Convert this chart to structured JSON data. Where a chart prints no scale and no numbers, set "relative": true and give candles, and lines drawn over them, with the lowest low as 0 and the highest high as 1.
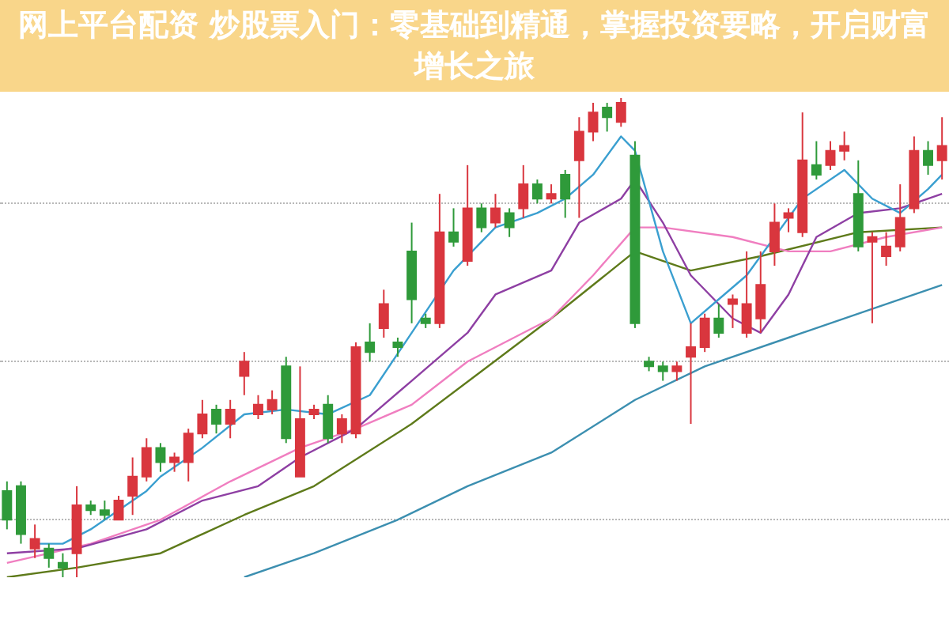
{
  "chart_data": {
    "type": "candlestick",
    "title": "网上平台配资 炒股票入门：零基础到精通，掌握投资要略，开启财富增长之旅",
    "relative": true,
    "tick_labels": false,
    "categories": [
      null,
      null,
      null,
      null,
      null,
      null,
      null,
      null,
      null,
      null,
      null,
      null,
      null,
      null,
      null,
      null,
      null,
      null,
      null,
      null,
      null,
      null,
      null,
      null,
      null,
      null,
      null,
      null,
      null,
      null,
      null,
      null,
      null,
      null,
      null,
      null,
      null,
      null,
      null,
      null,
      null,
      null,
      null,
      null,
      null,
      null,
      null,
      null,
      null,
      null,
      null,
      null,
      null,
      null,
      null,
      null,
      null,
      null,
      null,
      null,
      null,
      null,
      null,
      null,
      null,
      null,
      null,
      null
    ],
    "ohlc": [
      [
        0.18,
        0.2,
        0.1,
        0.12
      ],
      [
        0.19,
        0.2,
        0.07,
        0.09
      ],
      [
        0.06,
        0.11,
        0.04,
        0.08
      ],
      [
        0.06,
        0.07,
        0.02,
        0.04
      ],
      [
        0.03,
        0.05,
        0,
        0.02
      ],
      [
        0.05,
        0.19,
        0,
        0.15
      ],
      [
        0.15,
        0.16,
        0.13,
        0.14
      ],
      [
        0.14,
        0.16,
        0.12,
        0.13
      ],
      [
        0.12,
        0.17,
        0.12,
        0.16
      ],
      [
        0.17,
        0.25,
        0.13,
        0.21
      ],
      [
        0.21,
        0.29,
        0.2,
        0.27
      ],
      [
        0.27,
        0.28,
        0.22,
        0.24
      ],
      [
        0.24,
        0.26,
        0.22,
        0.25
      ],
      [
        0.24,
        0.31,
        0.2,
        0.3
      ],
      [
        0.3,
        0.37,
        0.29,
        0.34
      ],
      [
        0.35,
        0.36,
        0.3,
        0.32
      ],
      [
        0.32,
        0.37,
        0.29,
        0.35
      ],
      [
        0.42,
        0.47,
        0.38,
        0.45
      ],
      [
        0.34,
        0.38,
        0.33,
        0.36
      ],
      [
        0.35,
        0.39,
        0.34,
        0.37
      ],
      [
        0.44,
        0.46,
        0.28,
        0.29
      ],
      [
        0.21,
        0.44,
        0.21,
        0.33
      ],
      [
        0.34,
        0.36,
        0.33,
        0.35
      ],
      [
        0.36,
        0.38,
        0.28,
        0.29
      ],
      [
        0.3,
        0.34,
        0.28,
        0.33
      ],
      [
        0.3,
        0.49,
        0.29,
        0.48
      ],
      [
        0.49,
        0.53,
        0.45,
        0.47
      ],
      [
        0.52,
        0.6,
        0.5,
        0.57
      ],
      [
        0.49,
        0.5,
        0.46,
        0.48
      ],
      [
        0.68,
        0.74,
        0.53,
        0.58
      ],
      [
        0.54,
        0.55,
        0.52,
        0.53
      ],
      [
        0.53,
        0.8,
        0.52,
        0.72
      ],
      [
        0.72,
        0.77,
        0.69,
        0.7
      ],
      [
        0.66,
        0.86,
        0.65,
        0.77
      ],
      [
        0.77,
        0.78,
        0.72,
        0.73
      ],
      [
        0.74,
        0.8,
        0.73,
        0.77
      ],
      [
        0.76,
        0.77,
        0.71,
        0.73
      ],
      [
        0.77,
        0.86,
        0.75,
        0.82
      ],
      [
        0.82,
        0.83,
        0.78,
        0.79
      ],
      [
        0.79,
        0.82,
        0.78,
        0.8
      ],
      [
        0.84,
        0.85,
        0.75,
        0.79
      ],
      [
        0.87,
        0.96,
        0.75,
        0.93
      ],
      [
        0.93,
        0.99,
        0.91,
        0.97
      ],
      [
        0.98,
        0.99,
        0.93,
        0.96
      ],
      [
        0.95,
        1,
        0.94,
        0.99
      ],
      [
        0.88,
        0.91,
        0.52,
        0.53
      ],
      [
        0.45,
        0.46,
        0.43,
        0.44
      ],
      [
        0.44,
        0.45,
        0.41,
        0.43
      ],
      [
        0.43,
        0.45,
        0.41,
        0.44
      ],
      [
        0.46,
        0.53,
        0.32,
        0.48
      ],
      [
        0.48,
        0.55,
        0.47,
        0.54
      ],
      [
        0.54,
        0.57,
        0.5,
        0.51
      ],
      [
        0.57,
        0.59,
        0.52,
        0.58
      ],
      [
        0.51,
        0.68,
        0.5,
        0.57
      ],
      [
        0.54,
        0.68,
        0.51,
        0.61
      ],
      [
        0.68,
        0.78,
        0.65,
        0.74
      ],
      [
        0.75,
        0.77,
        0.72,
        0.76
      ],
      [
        0.72,
        0.97,
        0.71,
        0.87
      ],
      [
        0.86,
        0.91,
        0.83,
        0.84
      ],
      [
        0.86,
        0.91,
        0.85,
        0.89
      ],
      [
        0.89,
        0.93,
        0.87,
        0.9
      ],
      [
        0.8,
        0.87,
        0.68,
        0.69
      ],
      [
        0.7,
        0.72,
        0.53,
        0.71
      ],
      [
        0.67,
        0.72,
        0.65,
        0.69
      ],
      [
        0.69,
        0.82,
        0.68,
        0.75
      ],
      [
        0.77,
        0.92,
        0.76,
        0.89
      ],
      [
        0.89,
        0.91,
        0.84,
        0.86
      ],
      [
        0.87,
        0.96,
        0.83,
        0.9
      ]
    ],
    "colors": [
      "#2f9a3a",
      "#2f9a3a",
      "#d9363e",
      "#2f9a3a",
      "#2f9a3a",
      "#d9363e",
      "#2f9a3a",
      "#2f9a3a",
      "#d9363e",
      "#d9363e",
      "#d9363e",
      "#2f9a3a",
      "#d9363e",
      "#d9363e",
      "#d9363e",
      "#2f9a3a",
      "#d9363e",
      "#d9363e",
      "#d9363e",
      "#d9363e",
      "#2f9a3a",
      "#d9363e",
      "#d9363e",
      "#2f9a3a",
      "#d9363e",
      "#d9363e",
      "#2f9a3a",
      "#d9363e",
      "#2f9a3a",
      "#2f9a3a",
      "#2f9a3a",
      "#d9363e",
      "#2f9a3a",
      "#d9363e",
      "#2f9a3a",
      "#d9363e",
      "#2f9a3a",
      "#d9363e",
      "#2f9a3a",
      "#d9363e",
      "#2f9a3a",
      "#d9363e",
      "#d9363e",
      "#2f9a3a",
      "#d9363e",
      "#2f9a3a",
      "#2f9a3a",
      "#2f9a3a",
      "#d9363e",
      "#d9363e",
      "#d9363e",
      "#2f9a3a",
      "#d9363e",
      "#d9363e",
      "#d9363e",
      "#d9363e",
      "#d9363e",
      "#d9363e",
      "#2f9a3a",
      "#d9363e",
      "#d9363e",
      "#2f9a3a",
      "#d9363e",
      "#d9363e",
      "#d9363e",
      "#d9363e",
      "#2f9a3a",
      "#d9363e"
    ],
    "series": [
      {
        "type": "line",
        "color": "#3a9fd0",
        "values": [
          null,
          null,
          0.07,
          null,
          0.07,
          null,
          0.1,
          null,
          null,
          null,
          0.18,
          0.21,
          null,
          null,
          0.27,
          null,
          null,
          0.34,
          null,
          null,
          0.35,
          null,
          null,
          0.34,
          null,
          null,
          0.38,
          null,
          null,
          0.51,
          null,
          null,
          0.64,
          null,
          null,
          0.73,
          null,
          null,
          0.76,
          null,
          0.79,
          null,
          0.84,
          null,
          0.92,
          0.89,
          null,
          0.68,
          null,
          0.53,
          null,
          0.58,
          null,
          0.63,
          null,
          null,
          null,
          0.79,
          null,
          null,
          0.85,
          null,
          0.79,
          null,
          0.76,
          null,
          0.81,
          0.84
        ]
      },
      {
        "type": "line",
        "color": "#8e3fa3",
        "values": [
          0.05,
          null,
          null,
          null,
          null,
          0.06,
          null,
          null,
          null,
          null,
          0.1,
          null,
          null,
          null,
          0.16,
          null,
          null,
          null,
          0.19,
          null,
          null,
          0.25,
          null,
          null,
          null,
          0.31,
          null,
          null,
          null,
          0.41,
          null,
          null,
          null,
          0.51,
          null,
          0.59,
          null,
          null,
          null,
          0.64,
          null,
          0.74,
          null,
          null,
          0.79,
          0.83,
          null,
          0.74,
          null,
          0.63,
          null,
          null,
          0.54,
          null,
          0.51,
          null,
          0.59,
          null,
          0.71,
          null,
          null,
          0.76,
          null,
          null,
          0.77,
          null,
          null,
          0.8
        ]
      },
      {
        "type": "line",
        "color": "#f07ec0",
        "values": [
          0.03,
          null,
          null,
          null,
          null,
          null,
          0.07,
          null,
          null,
          null,
          null,
          0.12,
          null,
          null,
          null,
          null,
          0.2,
          null,
          null,
          null,
          null,
          0.27,
          null,
          null,
          null,
          0.31,
          null,
          null,
          null,
          0.36,
          null,
          null,
          null,
          0.45,
          null,
          null,
          null,
          null,
          null,
          0.54,
          null,
          null,
          0.63,
          null,
          null,
          0.73,
          null,
          0.73,
          null,
          null,
          null,
          null,
          0.71,
          null,
          null,
          null,
          0.68,
          null,
          null,
          0.68,
          null,
          null,
          null,
          0.71,
          null,
          null,
          null,
          0.73
        ]
      },
      {
        "type": "line",
        "color": "#5e7a1a",
        "values": [
          0,
          null,
          null,
          null,
          null,
          0.02,
          null,
          null,
          null,
          null,
          null,
          0.05,
          null,
          null,
          null,
          null,
          null,
          0.13,
          null,
          null,
          null,
          null,
          0.19,
          null,
          null,
          null,
          null,
          null,
          null,
          0.32,
          null,
          null,
          null,
          null,
          0.43,
          null,
          null,
          null,
          null,
          0.54,
          null,
          null,
          null,
          null,
          null,
          0.68,
          null,
          null,
          null,
          0.64,
          null,
          null,
          null,
          null,
          0.67,
          null,
          null,
          null,
          null,
          null,
          null,
          0.72,
          null,
          null,
          null,
          null,
          null,
          0.73
        ]
      },
      {
        "type": "line",
        "color": "#3c8fb0",
        "values": [
          null,
          null,
          null,
          null,
          null,
          null,
          null,
          null,
          null,
          null,
          null,
          null,
          null,
          null,
          null,
          null,
          null,
          0,
          null,
          null,
          null,
          null,
          0.05,
          null,
          null,
          null,
          null,
          null,
          0.12,
          null,
          null,
          null,
          null,
          0.19,
          null,
          null,
          null,
          null,
          null,
          0.26,
          null,
          null,
          null,
          null,
          null,
          0.37,
          null,
          null,
          null,
          null,
          0.44,
          null,
          null,
          null,
          null,
          null,
          0.5,
          null,
          null,
          null,
          null,
          null,
          0.56,
          null,
          null,
          null,
          null,
          0.61
        ]
      }
    ]
  }
}
